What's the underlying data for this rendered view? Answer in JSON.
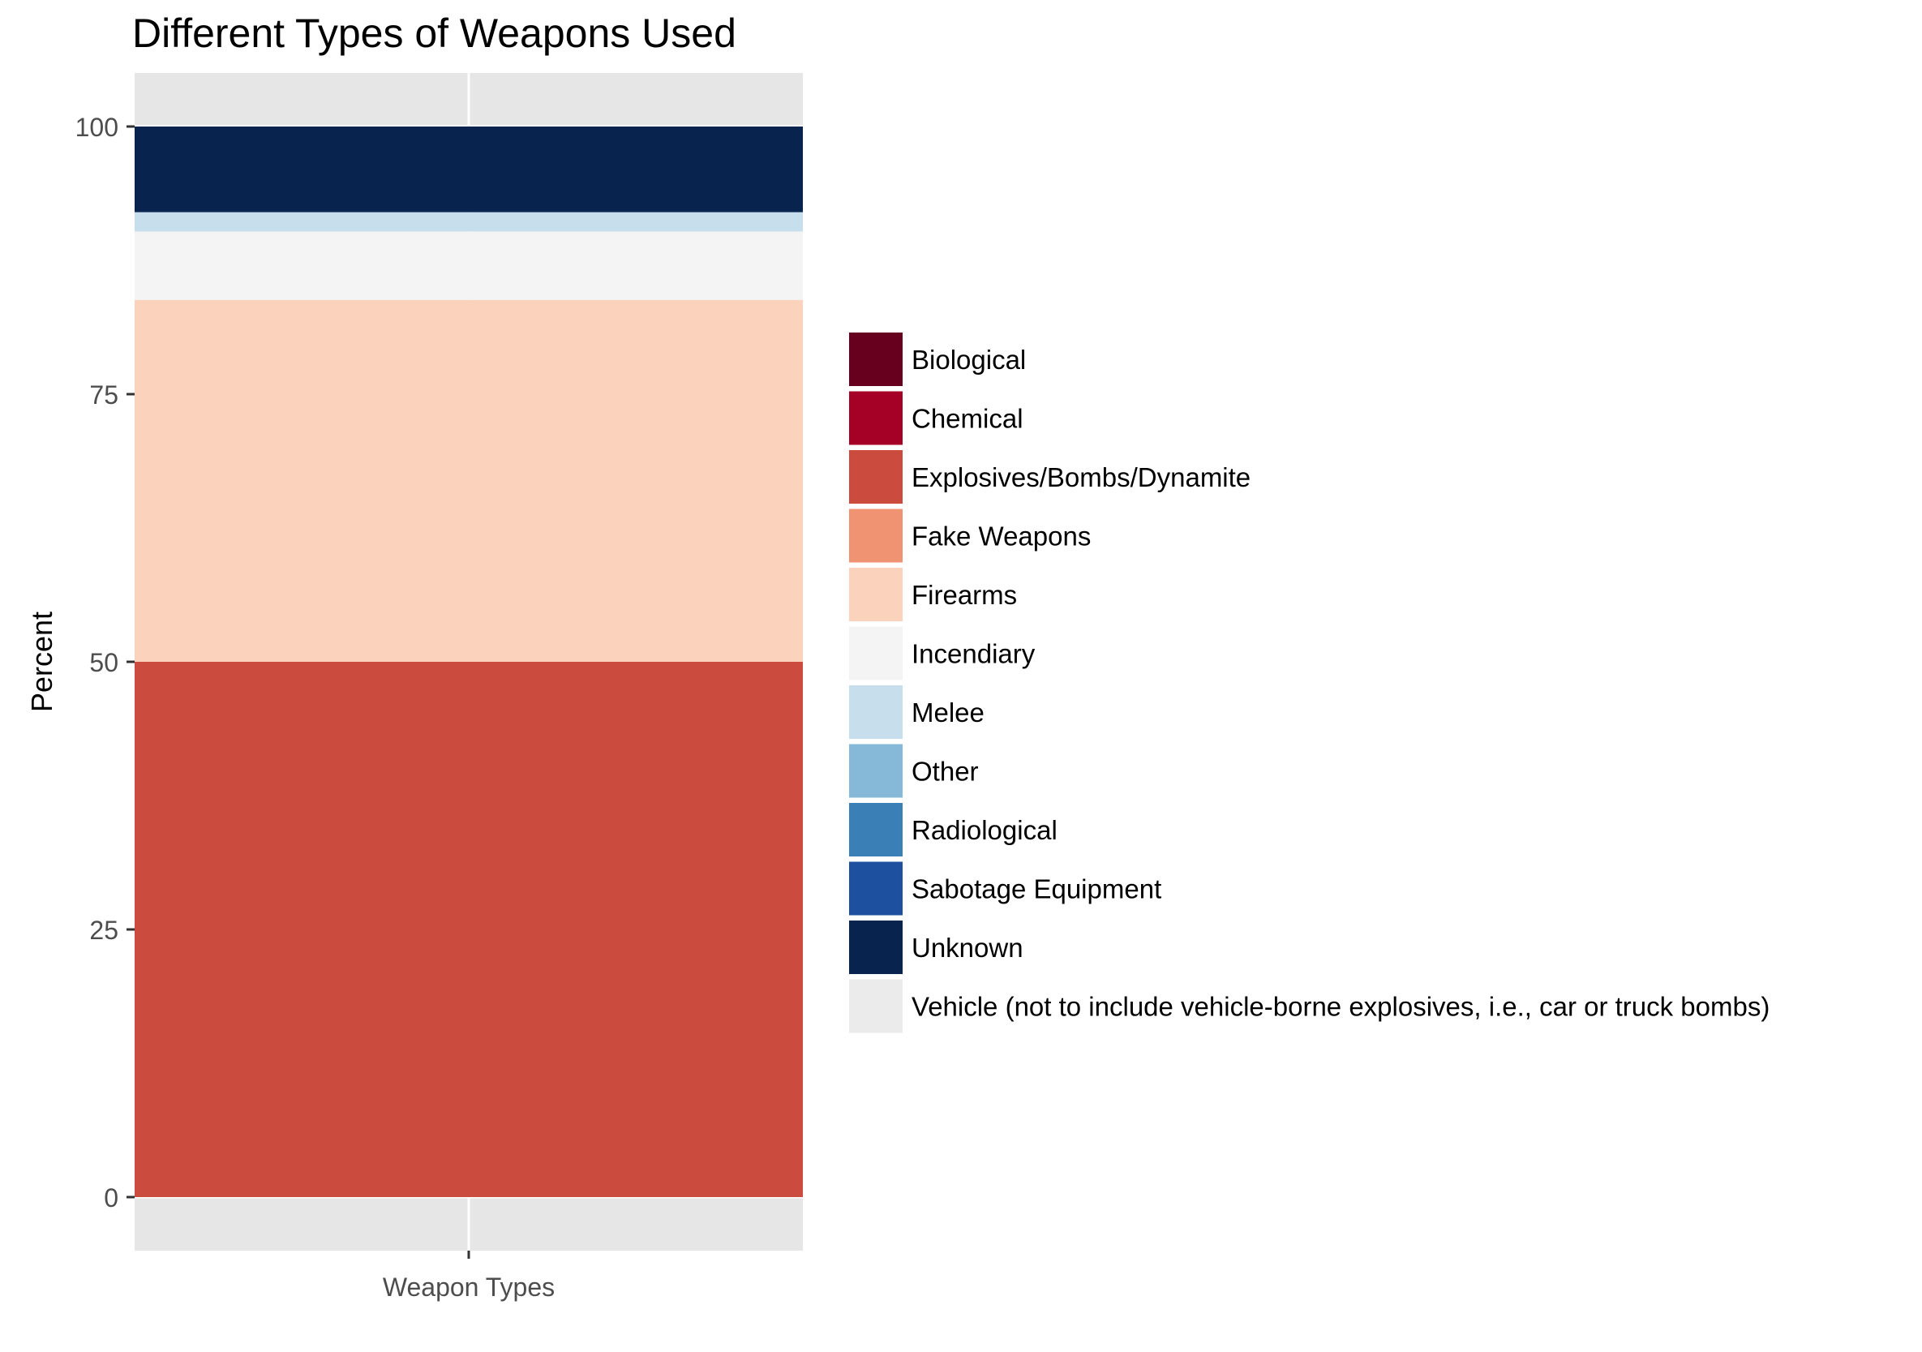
{
  "chart_data": {
    "type": "bar",
    "stacked": true,
    "title": "Different Types of Weapons Used",
    "xlabel": "",
    "ylabel": "Percent",
    "categories": [
      "Weapon Types"
    ],
    "yticks": [
      "0",
      "25",
      "50",
      "75",
      "100"
    ],
    "ylim": [
      -5,
      105
    ],
    "grid": true,
    "legend_position": "right",
    "series": [
      {
        "name": "Biological",
        "color": "#67001F",
        "values": [
          0
        ]
      },
      {
        "name": "Chemical",
        "color": "#A50026",
        "values": [
          0
        ]
      },
      {
        "name": "Explosives/Bombs/Dynamite",
        "color": "#CB4B3F",
        "values": [
          50.0
        ]
      },
      {
        "name": "Fake Weapons",
        "color": "#EF9373",
        "values": [
          0
        ]
      },
      {
        "name": "Firearms",
        "color": "#FBD3BD",
        "values": [
          33.8
        ]
      },
      {
        "name": "Incendiary",
        "color": "#F4F4F4",
        "values": [
          6.4
        ]
      },
      {
        "name": "Melee",
        "color": "#C7DEEC",
        "values": [
          1.8
        ]
      },
      {
        "name": "Other",
        "color": "#85B9D7",
        "values": [
          0
        ]
      },
      {
        "name": "Radiological",
        "color": "#3A80B7",
        "values": [
          0
        ]
      },
      {
        "name": "Sabotage Equipment",
        "color": "#1D509E",
        "values": [
          0
        ]
      },
      {
        "name": "Unknown",
        "color": "#08244E",
        "values": [
          8.0
        ]
      },
      {
        "name": "Vehicle (not to include vehicle-borne explosives, i.e., car or truck bombs)",
        "color": "#EBEBEB",
        "values": [
          0
        ]
      }
    ]
  }
}
